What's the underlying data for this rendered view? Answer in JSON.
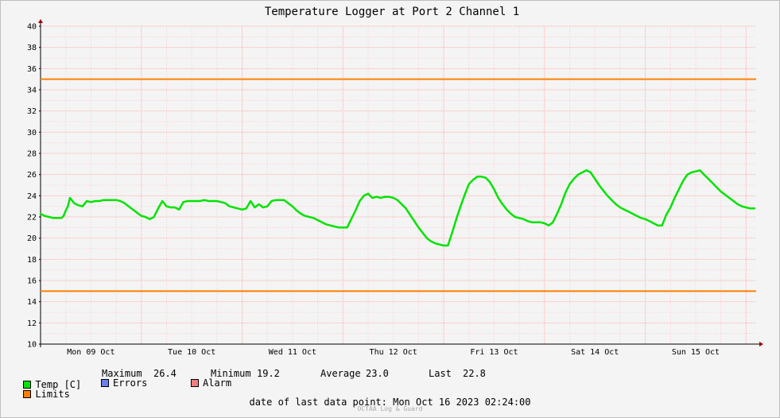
{
  "chart_data": {
    "type": "line",
    "title": "Temperature Logger at Port 2 Channel 1",
    "ylim": [
      10,
      40
    ],
    "y_ticks": [
      10,
      12,
      14,
      16,
      18,
      20,
      22,
      24,
      26,
      28,
      30,
      32,
      34,
      36,
      38,
      40
    ],
    "x_range_hours": [
      0,
      170.4
    ],
    "x_tick_labels": [
      "Mon 09 Oct",
      "Tue 10 Oct",
      "Wed 11 Oct",
      "Thu 12 Oct",
      "Fri 13 Oct",
      "Sat 14 Oct",
      "Sun 15 Oct"
    ],
    "grid": true,
    "limits": {
      "upper": 35,
      "lower": 15
    },
    "colors": {
      "temp": "#00e400",
      "limits": "#ff8000",
      "errors": "#6a7ff0",
      "alarm": "#f08080",
      "grid": "#ffaaaa"
    },
    "series": [
      {
        "name": "Temp [C]",
        "x": [
          0,
          1,
          2,
          3,
          4,
          5,
          5.5,
          6,
          6.5,
          7,
          8,
          9,
          10,
          11,
          12,
          13,
          14,
          15,
          16,
          17,
          18,
          19,
          20,
          21,
          22,
          23,
          24,
          25,
          26,
          27,
          28,
          29,
          30,
          31,
          32,
          33,
          34,
          35,
          36,
          37,
          38,
          39,
          40,
          41,
          42,
          43,
          44,
          45,
          46,
          47,
          48,
          49,
          50,
          51,
          52,
          53,
          54,
          55,
          56,
          57,
          58,
          59,
          60,
          61,
          62,
          63,
          64,
          65,
          66,
          67,
          68,
          69,
          70,
          71,
          72,
          73,
          74,
          75,
          76,
          77,
          78,
          79,
          80,
          81,
          82,
          83,
          84,
          85,
          86,
          87,
          88,
          89,
          90,
          91,
          92,
          93,
          94,
          95,
          96,
          97,
          98,
          99,
          100,
          101,
          102,
          103,
          104,
          105,
          106,
          107,
          108,
          109,
          110,
          111,
          112,
          113,
          114,
          115,
          116,
          117,
          118,
          119,
          120,
          121,
          122,
          123,
          124,
          125,
          126,
          127,
          128,
          129,
          130,
          131,
          132,
          133,
          134,
          135,
          136,
          137,
          138,
          139,
          140,
          141,
          142,
          143,
          144,
          145,
          146,
          147,
          148,
          149,
          150,
          151,
          152,
          153,
          154,
          155,
          156,
          157,
          158,
          159,
          160,
          161,
          162,
          163,
          164,
          165,
          166,
          167,
          168,
          169,
          170
        ],
        "values": [
          22.3,
          22.1,
          22.0,
          21.9,
          21.9,
          21.9,
          22.1,
          22.6,
          23.0,
          23.8,
          23.3,
          23.1,
          23.0,
          23.5,
          23.4,
          23.5,
          23.5,
          23.6,
          23.6,
          23.6,
          23.6,
          23.5,
          23.3,
          23.0,
          22.7,
          22.4,
          22.1,
          22.0,
          21.8,
          22.0,
          22.8,
          23.5,
          23.0,
          22.9,
          22.9,
          22.7,
          23.4,
          23.5,
          23.5,
          23.5,
          23.5,
          23.6,
          23.5,
          23.5,
          23.5,
          23.4,
          23.3,
          23.0,
          22.9,
          22.8,
          22.7,
          22.8,
          23.5,
          22.9,
          23.2,
          22.9,
          23.0,
          23.5,
          23.6,
          23.6,
          23.6,
          23.3,
          23.0,
          22.6,
          22.3,
          22.1,
          22.0,
          21.9,
          21.7,
          21.5,
          21.3,
          21.2,
          21.1,
          21.0,
          21.0,
          21.0,
          21.8,
          22.6,
          23.5,
          24.0,
          24.2,
          23.8,
          23.9,
          23.8,
          23.9,
          23.9,
          23.8,
          23.6,
          23.2,
          22.8,
          22.2,
          21.6,
          21.0,
          20.5,
          20.0,
          19.7,
          19.5,
          19.4,
          19.3,
          19.3,
          20.5,
          21.8,
          23.0,
          24.1,
          25.1,
          25.5,
          25.8,
          25.8,
          25.7,
          25.3,
          24.6,
          23.8,
          23.2,
          22.7,
          22.3,
          22.0,
          21.9,
          21.8,
          21.6,
          21.5,
          21.5,
          21.5,
          21.4,
          21.2,
          21.5,
          22.3,
          23.2,
          24.3,
          25.1,
          25.6,
          26.0,
          26.2,
          26.4,
          26.2,
          25.6,
          25.0,
          24.5,
          24.0,
          23.6,
          23.2,
          22.9,
          22.7,
          22.5,
          22.3,
          22.1,
          21.9,
          21.8,
          21.6,
          21.4,
          21.2,
          21.2,
          22.2,
          22.9,
          23.8,
          24.6,
          25.4,
          26.0,
          26.2,
          26.3,
          26.4,
          26.0,
          25.6,
          25.2,
          24.8,
          24.4,
          24.1,
          23.8,
          23.5,
          23.2,
          23.0,
          22.9,
          22.8,
          22.8
        ]
      }
    ]
  },
  "legend": {
    "temp_label": "Temp [C]",
    "limits_label": "Limits",
    "errors_label": "Errors",
    "alarm_label": "Alarm",
    "maximum_label": "Maximum",
    "maximum_value": "26.4",
    "minimum_label": "Minimum",
    "minimum_value": "19.2",
    "average_label": "Average",
    "average_value": "23.0",
    "last_label": "Last",
    "last_value": "22.8"
  },
  "footer": {
    "last_data_point": "date of last data point:  Mon Oct 16 2023 02:24:00",
    "credit": "OCTAA Log & Guard"
  }
}
